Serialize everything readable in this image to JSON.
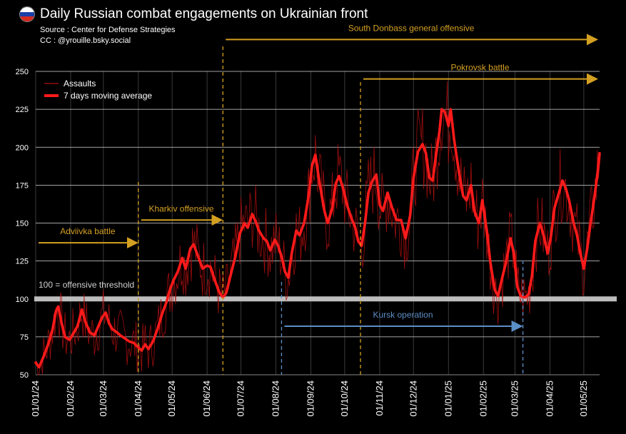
{
  "header": {
    "title": "Daily Russian combat engagements on Ukrainian front",
    "source": "Source : Center for Defense Strategies",
    "credit": "CC : @yrouille.bsky.social",
    "flag_colors": [
      "#ffffff",
      "#1c3fa8",
      "#d52b1e"
    ]
  },
  "chart_data": {
    "type": "line",
    "title": "Daily Russian combat engagements on Ukrainian front",
    "xlabel": "",
    "ylabel": "",
    "ylim": [
      50,
      250
    ],
    "yticks": [
      50,
      75,
      100,
      125,
      150,
      175,
      200,
      225,
      250
    ],
    "grid": "horizontal",
    "legend_position": "top-left",
    "x_start_date": "2024-01-01",
    "x_end_date": "2025-05-15",
    "month_ticks": [
      "01/01/24",
      "01/02/24",
      "01/03/24",
      "01/04/24",
      "01/05/24",
      "01/06/24",
      "01/07/24",
      "01/08/24",
      "01/09/24",
      "01/10/24",
      "01/11/24",
      "01/12/24",
      "01/01/25",
      "01/02/25",
      "01/03/25",
      "01/04/25",
      "01/05/25"
    ],
    "series": [
      {
        "name": "Assaults",
        "color": "#b01010",
        "note": "daily values, noisy around the moving average"
      },
      {
        "name": "7 days moving average",
        "color": "#ff1a1a",
        "points": [
          [
            "2024-01-01",
            58
          ],
          [
            "2024-01-04",
            55
          ],
          [
            "2024-01-08",
            62
          ],
          [
            "2024-01-12",
            70
          ],
          [
            "2024-01-16",
            80
          ],
          [
            "2024-01-19",
            92
          ],
          [
            "2024-01-21",
            95
          ],
          [
            "2024-01-24",
            84
          ],
          [
            "2024-01-27",
            75
          ],
          [
            "2024-01-31",
            73
          ],
          [
            "2024-02-04",
            78
          ],
          [
            "2024-02-07",
            82
          ],
          [
            "2024-02-11",
            93
          ],
          [
            "2024-02-14",
            85
          ],
          [
            "2024-02-18",
            78
          ],
          [
            "2024-02-22",
            76
          ],
          [
            "2024-02-25",
            81
          ],
          [
            "2024-02-29",
            88
          ],
          [
            "2024-03-03",
            91
          ],
          [
            "2024-03-06",
            84
          ],
          [
            "2024-03-09",
            80
          ],
          [
            "2024-03-13",
            78
          ],
          [
            "2024-03-16",
            76
          ],
          [
            "2024-03-20",
            74
          ],
          [
            "2024-03-24",
            72
          ],
          [
            "2024-03-28",
            71
          ],
          [
            "2024-04-01",
            68
          ],
          [
            "2024-04-04",
            66
          ],
          [
            "2024-04-07",
            70
          ],
          [
            "2024-04-10",
            67
          ],
          [
            "2024-04-14",
            72
          ],
          [
            "2024-04-18",
            80
          ],
          [
            "2024-04-22",
            90
          ],
          [
            "2024-04-26",
            98
          ],
          [
            "2024-04-29",
            106
          ],
          [
            "2024-05-02",
            112
          ],
          [
            "2024-05-06",
            118
          ],
          [
            "2024-05-10",
            127
          ],
          [
            "2024-05-13",
            120
          ],
          [
            "2024-05-17",
            133
          ],
          [
            "2024-05-20",
            136
          ],
          [
            "2024-05-24",
            128
          ],
          [
            "2024-05-28",
            120
          ],
          [
            "2024-06-01",
            122
          ],
          [
            "2024-06-04",
            121
          ],
          [
            "2024-06-08",
            112
          ],
          [
            "2024-06-12",
            104
          ],
          [
            "2024-06-15",
            101
          ],
          [
            "2024-06-18",
            104
          ],
          [
            "2024-06-22",
            116
          ],
          [
            "2024-06-26",
            128
          ],
          [
            "2024-06-30",
            143
          ],
          [
            "2024-07-04",
            150
          ],
          [
            "2024-07-07",
            147
          ],
          [
            "2024-07-11",
            156
          ],
          [
            "2024-07-14",
            151
          ],
          [
            "2024-07-17",
            145
          ],
          [
            "2024-07-21",
            140
          ],
          [
            "2024-07-24",
            138
          ],
          [
            "2024-07-27",
            132
          ],
          [
            "2024-07-31",
            139
          ],
          [
            "2024-08-03",
            135
          ],
          [
            "2024-08-06",
            128
          ],
          [
            "2024-08-09",
            118
          ],
          [
            "2024-08-12",
            114
          ],
          [
            "2024-08-15",
            130
          ],
          [
            "2024-08-19",
            145
          ],
          [
            "2024-08-22",
            142
          ],
          [
            "2024-08-26",
            150
          ],
          [
            "2024-08-30",
            168
          ],
          [
            "2024-09-02",
            188
          ],
          [
            "2024-09-05",
            195
          ],
          [
            "2024-09-09",
            175
          ],
          [
            "2024-09-13",
            158
          ],
          [
            "2024-09-16",
            150
          ],
          [
            "2024-09-20",
            160
          ],
          [
            "2024-09-23",
            176
          ],
          [
            "2024-09-26",
            181
          ],
          [
            "2024-09-30",
            172
          ],
          [
            "2024-10-03",
            162
          ],
          [
            "2024-10-07",
            153
          ],
          [
            "2024-10-10",
            148
          ],
          [
            "2024-10-13",
            138
          ],
          [
            "2024-10-16",
            135
          ],
          [
            "2024-10-19",
            150
          ],
          [
            "2024-10-22",
            170
          ],
          [
            "2024-10-25",
            177
          ],
          [
            "2024-10-29",
            182
          ],
          [
            "2024-11-01",
            162
          ],
          [
            "2024-11-04",
            158
          ],
          [
            "2024-11-08",
            170
          ],
          [
            "2024-11-12",
            160
          ],
          [
            "2024-11-16",
            152
          ],
          [
            "2024-11-20",
            152
          ],
          [
            "2024-11-24",
            140
          ],
          [
            "2024-11-28",
            155
          ],
          [
            "2024-12-01",
            180
          ],
          [
            "2024-12-05",
            197
          ],
          [
            "2024-12-09",
            202
          ],
          [
            "2024-12-12",
            196
          ],
          [
            "2024-12-15",
            180
          ],
          [
            "2024-12-18",
            178
          ],
          [
            "2024-12-21",
            195
          ],
          [
            "2024-12-24",
            210
          ],
          [
            "2024-12-26",
            225
          ],
          [
            "2024-12-29",
            223
          ],
          [
            "2025-01-01",
            214
          ],
          [
            "2025-01-03",
            225
          ],
          [
            "2025-01-06",
            205
          ],
          [
            "2025-01-10",
            185
          ],
          [
            "2025-01-14",
            168
          ],
          [
            "2025-01-17",
            165
          ],
          [
            "2025-01-21",
            175
          ],
          [
            "2025-01-24",
            158
          ],
          [
            "2025-01-28",
            150
          ],
          [
            "2025-01-31",
            165
          ],
          [
            "2025-02-04",
            145
          ],
          [
            "2025-02-07",
            125
          ],
          [
            "2025-02-11",
            106
          ],
          [
            "2025-02-14",
            102
          ],
          [
            "2025-02-18",
            115
          ],
          [
            "2025-02-21",
            124
          ],
          [
            "2025-02-25",
            140
          ],
          [
            "2025-02-28",
            130
          ],
          [
            "2025-03-03",
            108
          ],
          [
            "2025-03-06",
            102
          ],
          [
            "2025-03-10",
            101
          ],
          [
            "2025-03-13",
            103
          ],
          [
            "2025-03-16",
            115
          ],
          [
            "2025-03-19",
            138
          ],
          [
            "2025-03-23",
            150
          ],
          [
            "2025-03-26",
            143
          ],
          [
            "2025-03-30",
            130
          ],
          [
            "2025-04-02",
            142
          ],
          [
            "2025-04-05",
            160
          ],
          [
            "2025-04-09",
            170
          ],
          [
            "2025-04-12",
            178
          ],
          [
            "2025-04-15",
            173
          ],
          [
            "2025-04-18",
            165
          ],
          [
            "2025-04-22",
            150
          ],
          [
            "2025-04-25",
            142
          ],
          [
            "2025-04-28",
            130
          ],
          [
            "2025-05-01",
            120
          ],
          [
            "2025-05-04",
            133
          ],
          [
            "2025-05-07",
            150
          ],
          [
            "2025-05-10",
            165
          ],
          [
            "2025-05-12",
            176
          ],
          [
            "2025-05-14",
            188
          ],
          [
            "2025-05-15",
            196
          ]
        ]
      }
    ],
    "threshold": {
      "value": 100,
      "label": "100 = offensive threshold",
      "color": "#bdbdbd"
    },
    "annotations": [
      {
        "label": "Adviivka battle",
        "start": "2024-01-01",
        "end": "2024-04-01",
        "y": 137,
        "color": "#d4a021",
        "start_line": false,
        "end_line": true
      },
      {
        "label": "Kharkiv offensive",
        "start": "2024-04-01",
        "end": "2024-06-15",
        "y": 152,
        "color": "#d4a021",
        "start_line": false,
        "end_line": false
      },
      {
        "label": "South Donbass general offensive",
        "start": "2024-06-15",
        "end": "2025-05-15",
        "y": 271,
        "color": "#d4a021",
        "start_line": true,
        "end_line": false
      },
      {
        "label": "Pokrovsk battle",
        "start": "2024-10-15",
        "end": "2025-05-15",
        "y": 245,
        "color": "#d4a021",
        "start_line": true,
        "end_line": false
      },
      {
        "label": "Kursk operation",
        "start": "2024-08-06",
        "end": "2025-03-08",
        "y": 82,
        "color": "#5b8fc7",
        "start_line": true,
        "end_line": true
      }
    ]
  }
}
